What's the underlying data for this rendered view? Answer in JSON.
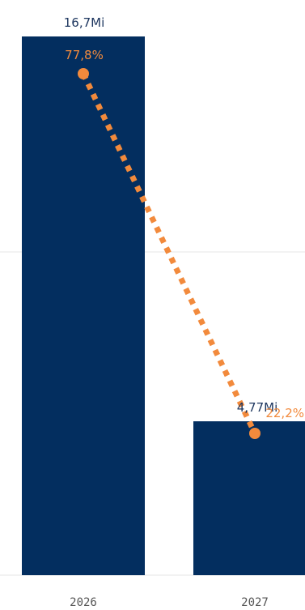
{
  "chart_data": {
    "type": "bar",
    "categories": [
      "2026",
      "2027"
    ],
    "series": [
      {
        "values": [
          16.7,
          4.77
        ],
        "value_labels": [
          "16,7Mi",
          "4,77Mi"
        ]
      },
      {
        "type": "line",
        "values": [
          77.8,
          22.2
        ],
        "value_labels": [
          "77,8%",
          "22,2%"
        ]
      }
    ],
    "ylim": [
      0,
      16.7
    ],
    "grid": true,
    "colors": {
      "bar": "#032e5f",
      "line": "#f28a3c",
      "grid": "#e6e6e6",
      "bar_label": "#1c355e",
      "tick_label": "#555555"
    }
  }
}
